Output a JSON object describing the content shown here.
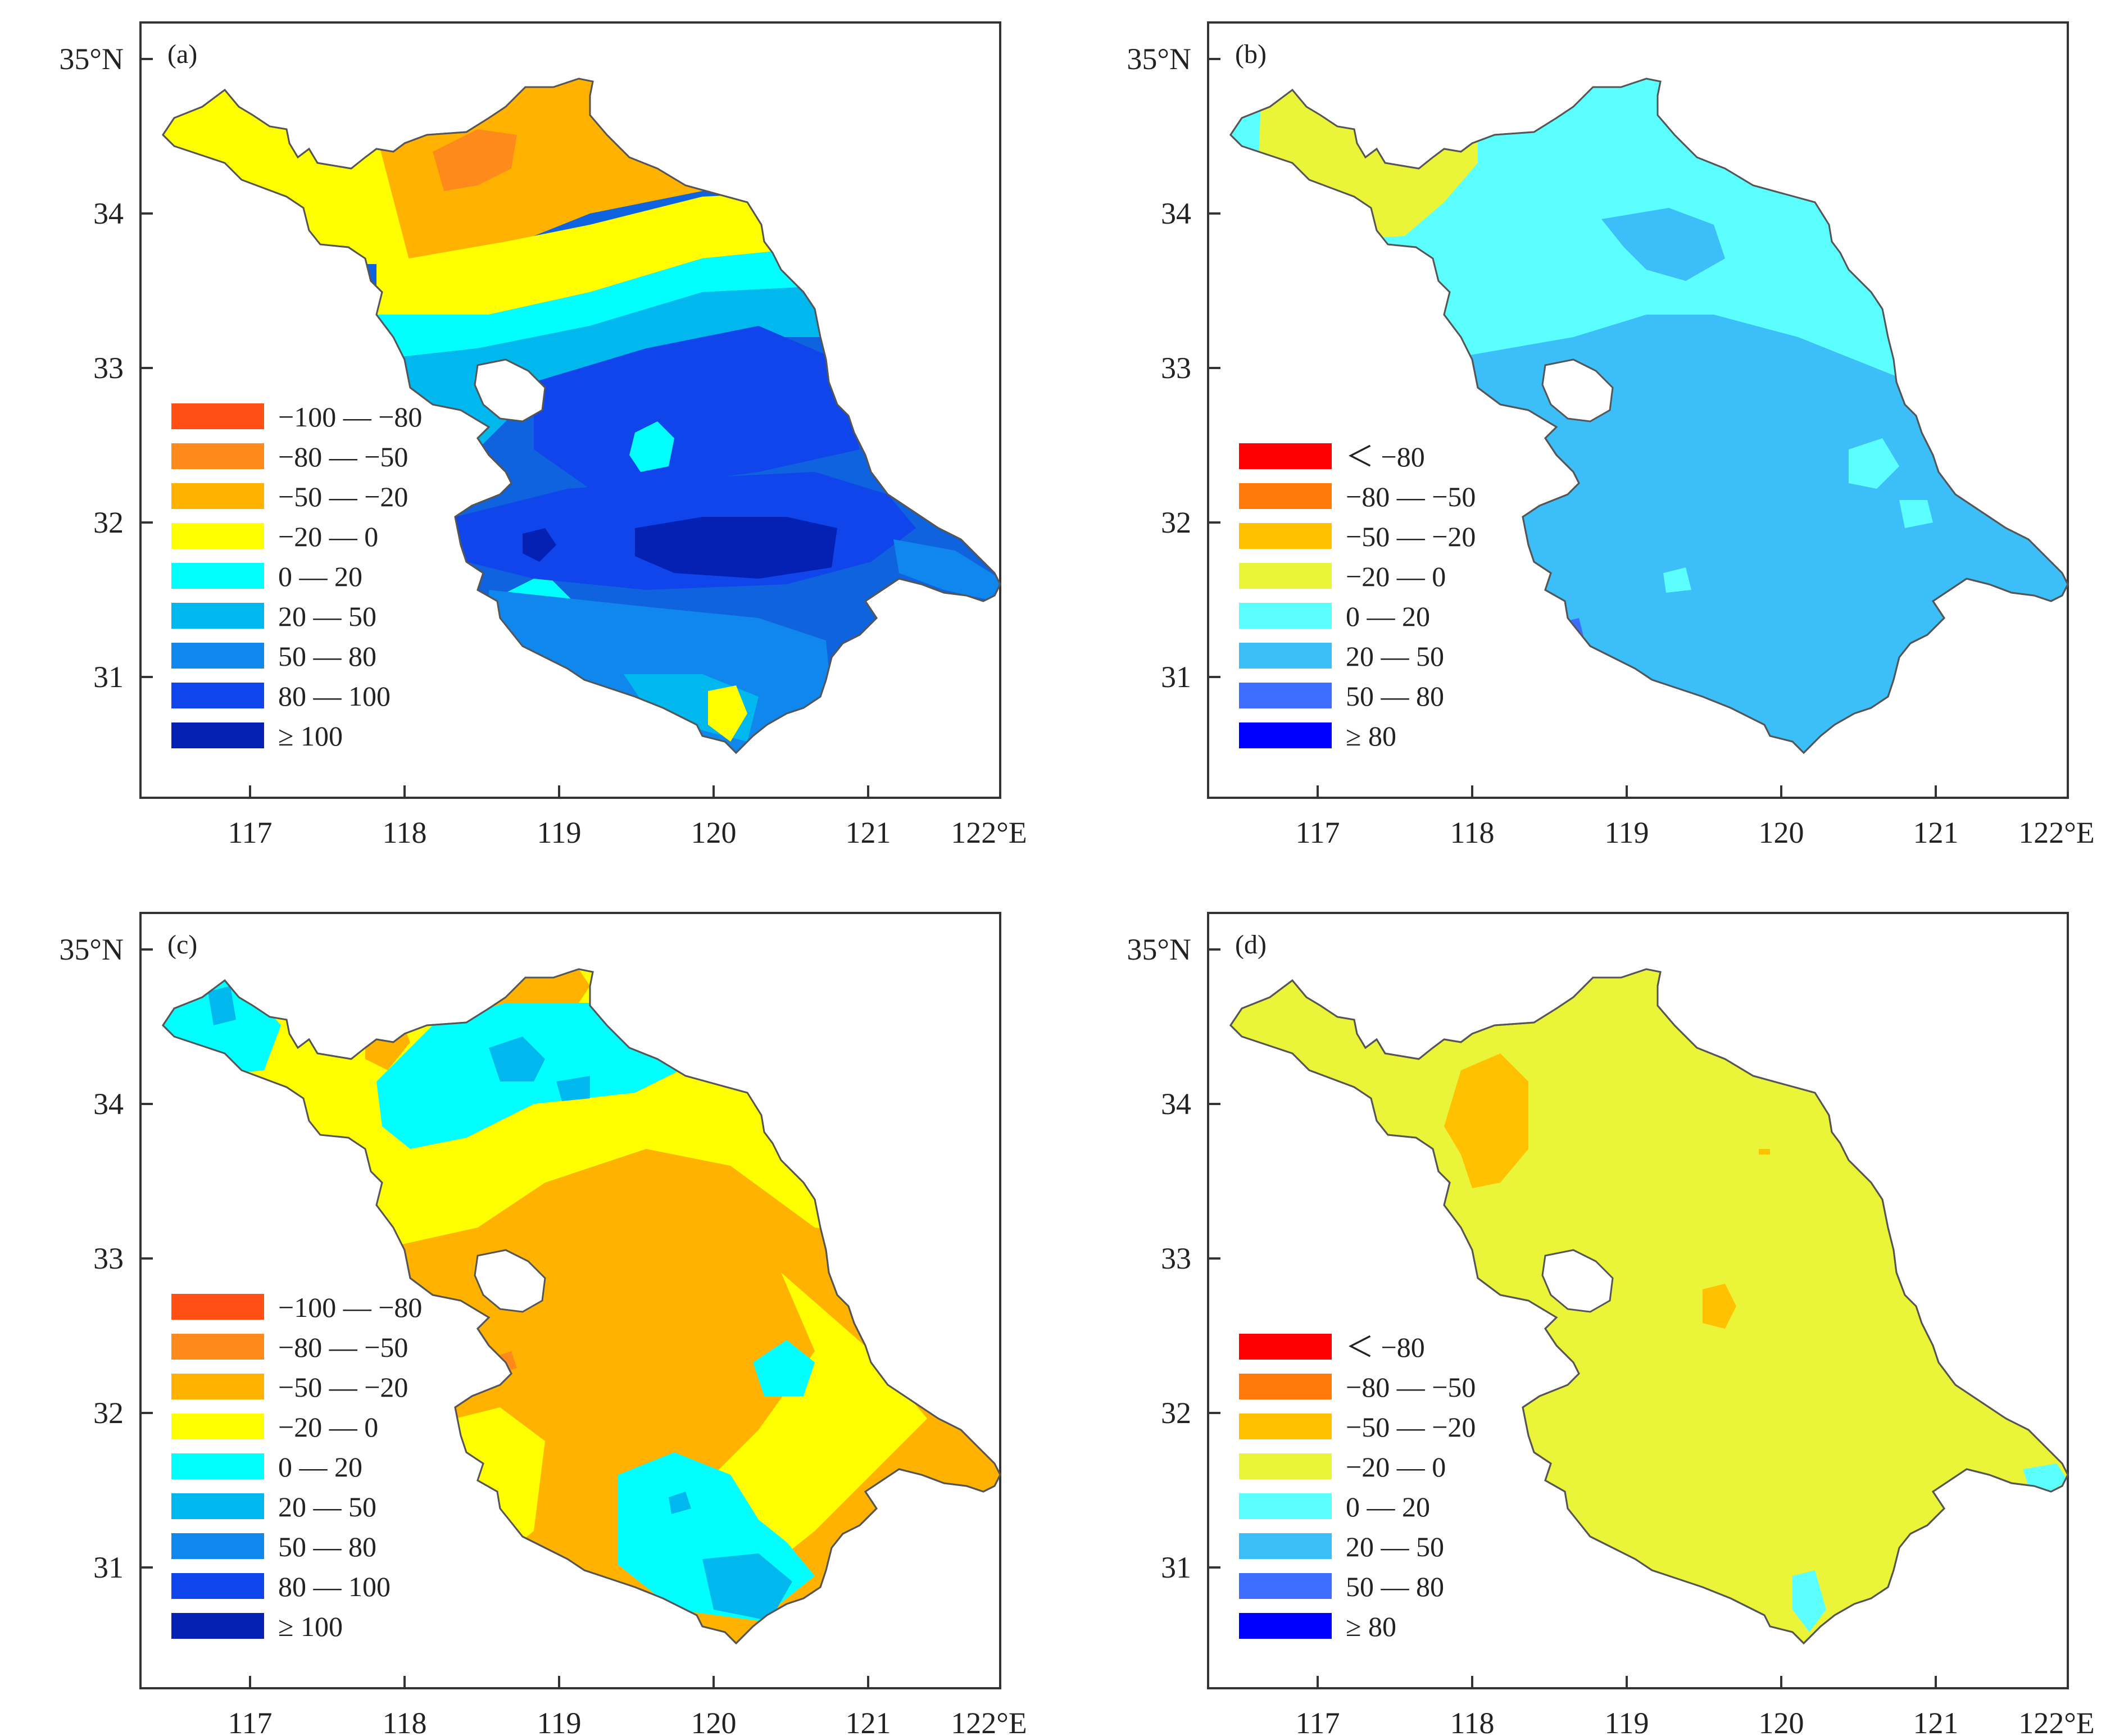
{
  "panels": [
    {
      "id": "a",
      "label": "(a)",
      "base_color": "#0f63df",
      "legend": [
        {
          "label": "−100 — −80",
          "color": "#ff4f14"
        },
        {
          "label": "−80 — −50",
          "color": "#ff8a1c"
        },
        {
          "label": "−50 — −20",
          "color": "#ffb300"
        },
        {
          "label": "−20 — 0",
          "color": "#ffff00"
        },
        {
          "label": "0 — 20",
          "color": "#00ffff"
        },
        {
          "label": "20 — 50",
          "color": "#00b7ee"
        },
        {
          "label": "50 — 80",
          "color": "#0f87ed"
        },
        {
          "label": "80 — 100",
          "color": "#0f45ea"
        },
        {
          "label": "≥ 100",
          "color": "#0421b4"
        }
      ]
    },
    {
      "id": "b",
      "label": "(b)",
      "base_color": "#3cbef8",
      "legend": [
        {
          "label": "＜ −80",
          "color": "#ff0000"
        },
        {
          "label": "−80 — −50",
          "color": "#ff7a0b"
        },
        {
          "label": "−50 — −20",
          "color": "#ffc100"
        },
        {
          "label": "−20 — 0",
          "color": "#eaf53a"
        },
        {
          "label": "0 — 20",
          "color": "#5cffff"
        },
        {
          "label": "20 — 50",
          "color": "#3cbef8"
        },
        {
          "label": "50 — 80",
          "color": "#3d6dff"
        },
        {
          "label": "≥ 80",
          "color": "#0000ff"
        }
      ]
    },
    {
      "id": "c",
      "label": "(c)",
      "base_color": "#ffb300",
      "legend": [
        {
          "label": "−100 — −80",
          "color": "#ff4f14"
        },
        {
          "label": "−80 — −50",
          "color": "#ff8a1c"
        },
        {
          "label": "−50 — −20",
          "color": "#ffb300"
        },
        {
          "label": "−20 — 0",
          "color": "#ffff00"
        },
        {
          "label": "0 — 20",
          "color": "#00ffff"
        },
        {
          "label": "20 — 50",
          "color": "#00b7ee"
        },
        {
          "label": "50 — 80",
          "color": "#0f87ed"
        },
        {
          "label": "80 — 100",
          "color": "#0f45ea"
        },
        {
          "label": "≥ 100",
          "color": "#0421b4"
        }
      ]
    },
    {
      "id": "d",
      "label": "(d)",
      "base_color": "#eaf53a",
      "legend": [
        {
          "label": "＜ −80",
          "color": "#ff0000"
        },
        {
          "label": "−80 — −50",
          "color": "#ff7a0b"
        },
        {
          "label": "−50 — −20",
          "color": "#ffc100"
        },
        {
          "label": "−20 — 0",
          "color": "#eaf53a"
        },
        {
          "label": "0 — 20",
          "color": "#5cffff"
        },
        {
          "label": "20 — 50",
          "color": "#3cbef8"
        },
        {
          "label": "50 — 80",
          "color": "#3d6dff"
        },
        {
          "label": "≥ 80",
          "color": "#0000ff"
        }
      ]
    }
  ],
  "axes": {
    "lon_ticks": [
      "117",
      "118",
      "119",
      "120",
      "121",
      "122°E"
    ],
    "lat_ticks": [
      "35°N",
      "34",
      "33",
      "32",
      "31"
    ]
  }
}
